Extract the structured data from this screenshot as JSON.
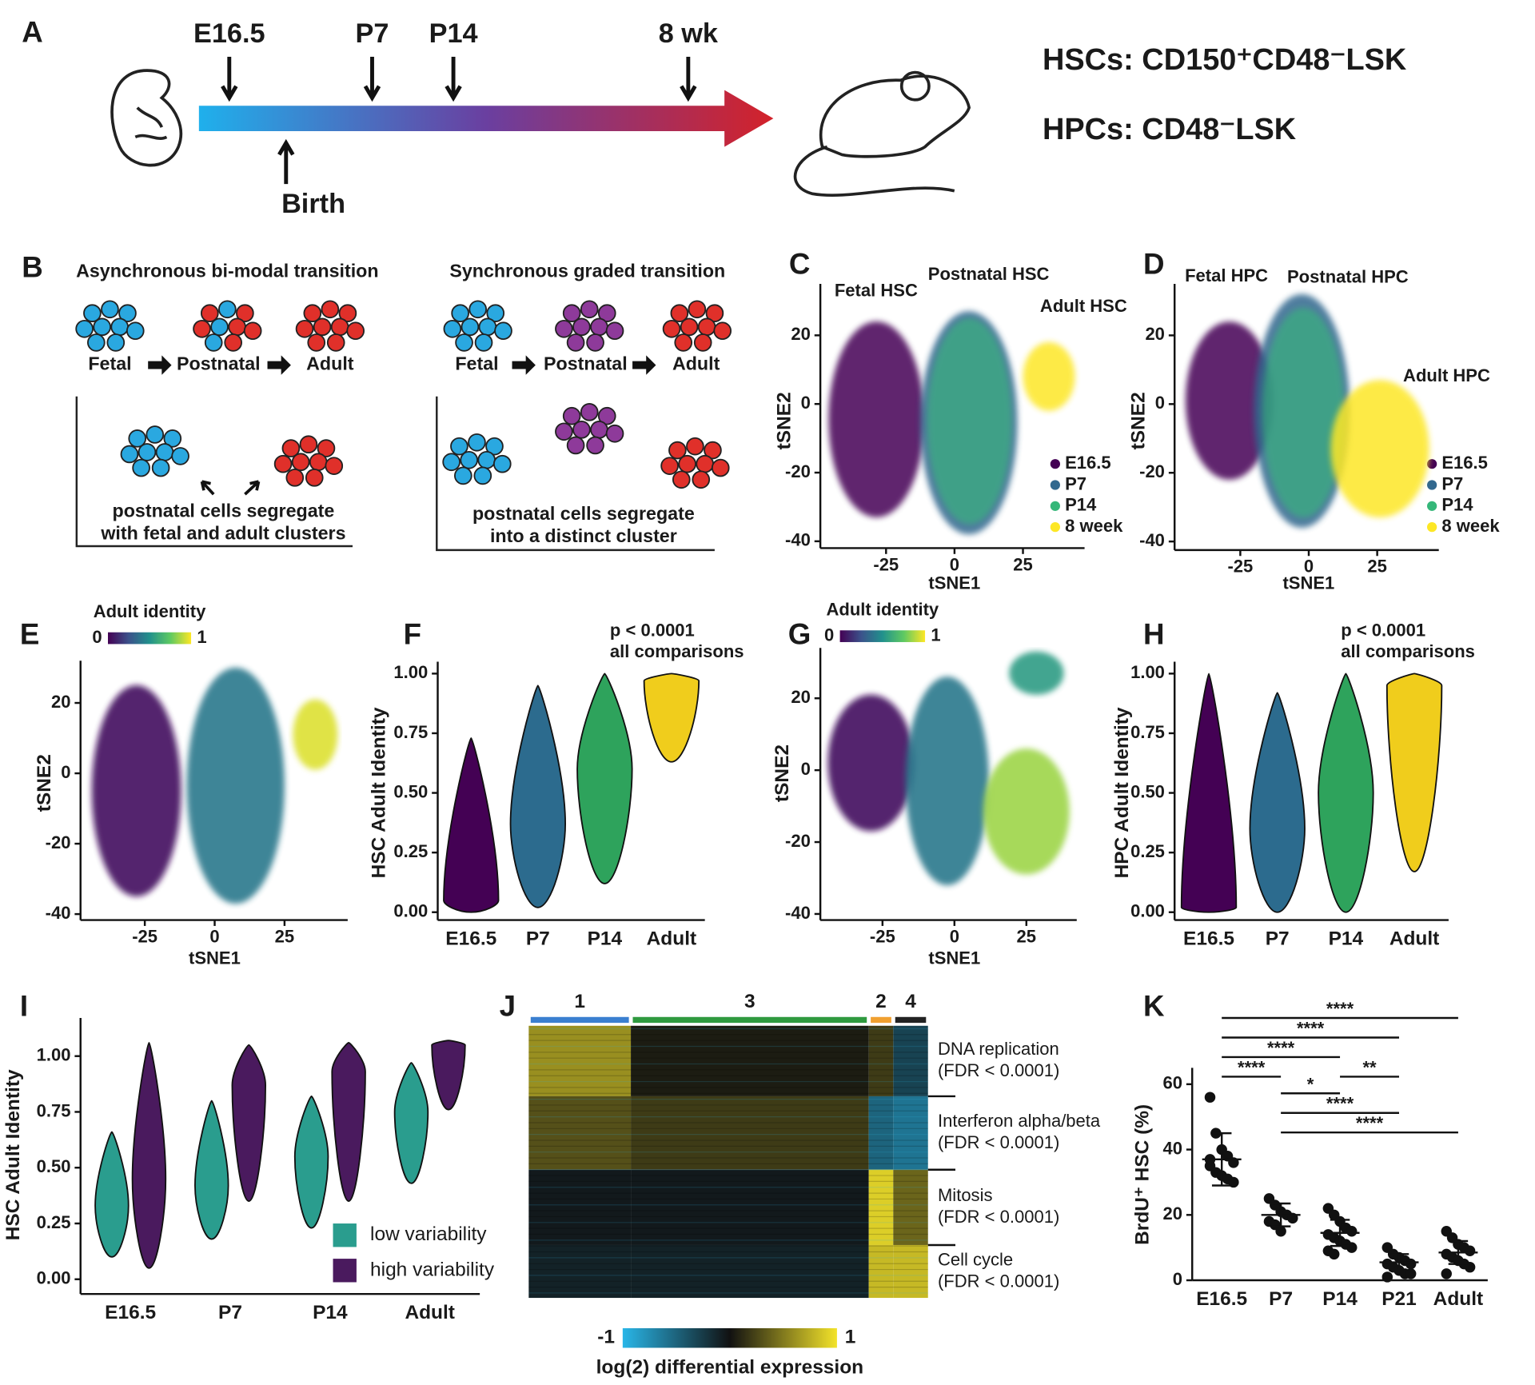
{
  "panel_labels": [
    "A",
    "B",
    "C",
    "D",
    "E",
    "F",
    "G",
    "H",
    "I",
    "J",
    "K"
  ],
  "panel_a": {
    "timepoints": [
      "E16.5",
      "P7",
      "P14",
      "8 wk"
    ],
    "birth": "Birth",
    "hsc": "HSCs: CD150⁺CD48⁻LSK",
    "hpc": "HPCs: CD48⁻LSK"
  },
  "panel_b": {
    "models": [
      {
        "title": "Asynchronous bi-modal transition",
        "stages": [
          "Fetal",
          "Postnatal",
          "Adult"
        ],
        "caption": [
          "postnatal cells segregate",
          "with fetal and adult clusters"
        ]
      },
      {
        "title": "Synchronous graded transition",
        "stages": [
          "Fetal",
          "Postnatal",
          "Adult"
        ],
        "caption": [
          "postnatal cells segregate",
          "into a distinct cluster"
        ]
      }
    ]
  },
  "chart_data": [
    {
      "type": "tsne",
      "annotations": [
        "Fetal HSC",
        "Postnatal HSC",
        "Adult HSC"
      ],
      "xlabel": "tSNE1",
      "ylabel": "tSNE2",
      "xlim": [
        -49,
        47.5
      ],
      "xticks": [
        -25,
        0,
        25
      ],
      "ylim": [
        -42,
        35
      ],
      "yticks": [
        -40,
        -20,
        0,
        20
      ],
      "series": [
        {
          "name": "E16.5",
          "color": "#440154",
          "x_range": [
            -46,
            -11
          ],
          "y_range": [
            -33,
            24
          ]
        },
        {
          "name": "P7",
          "color": "#31688e",
          "x_range": [
            -12.5,
            23
          ],
          "y_range": [
            -38,
            27
          ]
        },
        {
          "name": "P14",
          "color": "#35b779",
          "x_range": [
            -10,
            21
          ],
          "y_range": [
            -35,
            25
          ]
        },
        {
          "name": "8 week",
          "color": "#fde725",
          "x_range": [
            25,
            44
          ],
          "y_range": [
            -2,
            18
          ]
        }
      ]
    },
    {
      "type": "tsne",
      "annotations": [
        "Fetal HPC",
        "Postnatal HPC",
        "Adult HPC"
      ],
      "xlabel": "tSNE1",
      "ylabel": "tSNE2",
      "xlim": [
        -49,
        47.5
      ],
      "xticks": [
        -25,
        0,
        25
      ],
      "ylim": [
        -42.5,
        35
      ],
      "yticks": [
        -40,
        -20,
        0,
        20
      ],
      "series": [
        {
          "name": "E16.5",
          "color": "#440154",
          "x_range": [
            -45,
            -13
          ],
          "y_range": [
            -22,
            24
          ]
        },
        {
          "name": "P7",
          "color": "#31688e",
          "x_range": [
            -20,
            15
          ],
          "y_range": [
            -36,
            32
          ]
        },
        {
          "name": "P14",
          "color": "#35b779",
          "x_range": [
            -17,
            13
          ],
          "y_range": [
            -33,
            28
          ]
        },
        {
          "name": "8 week",
          "color": "#fde725",
          "x_range": [
            8,
            44
          ],
          "y_range": [
            -33,
            7
          ]
        }
      ]
    },
    {
      "type": "tsne",
      "colorbar_title": "Adult identity",
      "clim": [
        0,
        1
      ],
      "cticks": [
        0,
        1
      ],
      "xlabel": "tSNE1",
      "ylabel": "tSNE2",
      "xlim": [
        -48,
        47.6
      ],
      "xticks": [
        -25,
        0,
        25
      ],
      "ylim": [
        -41.7,
        32
      ],
      "yticks": [
        -40,
        -20,
        0,
        20
      ],
      "clusters": [
        {
          "x_range": [
            -44,
            -12
          ],
          "y_range": [
            -35,
            25
          ],
          "value": 0.05
        },
        {
          "x_range": [
            -10,
            25
          ],
          "y_range": [
            -37,
            30
          ],
          "value": 0.4
        },
        {
          "x_range": [
            28,
            44
          ],
          "y_range": [
            1,
            21
          ],
          "value": 0.95
        }
      ]
    },
    {
      "type": "tsne",
      "colorbar_title": "Adult identity",
      "clim": [
        0,
        1
      ],
      "cticks": [
        0,
        1
      ],
      "xlabel": "tSNE1",
      "ylabel": "tSNE2",
      "xlim": [
        -46.6,
        42.5
      ],
      "xticks": [
        -25,
        0,
        25
      ],
      "ylim": [
        -41.7,
        34
      ],
      "yticks": [
        -40,
        -20,
        0,
        20
      ],
      "clusters": [
        {
          "x_range": [
            -44,
            -14
          ],
          "y_range": [
            -17,
            21
          ],
          "value": 0.05
        },
        {
          "x_range": [
            -17,
            12
          ],
          "y_range": [
            -32,
            26
          ],
          "value": 0.4
        },
        {
          "x_range": [
            10,
            40
          ],
          "y_range": [
            -29,
            6
          ],
          "value": 0.85
        },
        {
          "x_range": [
            19,
            38
          ],
          "y_range": [
            21,
            33
          ],
          "value": 0.55
        }
      ]
    },
    {
      "type": "violin",
      "ylabel": "HSC Adult Identity",
      "annotation": [
        "p < 0.0001",
        "all comparisons"
      ],
      "categories": [
        "E16.5",
        "P7",
        "P14",
        "Adult"
      ],
      "colors": [
        "#440154",
        "#2c6b8e",
        "#2ea35c",
        "#f0cd1c"
      ],
      "ylim": [
        -0.033,
        1.05
      ],
      "yticks": [
        {
          "value": 0,
          "label": "0.00"
        },
        {
          "value": 0.25,
          "label": "0.25"
        },
        {
          "value": 0.5,
          "label": "0.50"
        },
        {
          "value": 0.75,
          "label": "0.75"
        },
        {
          "value": 1,
          "label": "1.00"
        }
      ],
      "min": [
        0,
        0.02,
        0.12,
        0.63
      ],
      "median": [
        0.05,
        0.37,
        0.6,
        0.97
      ],
      "max": [
        0.73,
        0.95,
        1.0,
        1.0
      ]
    },
    {
      "type": "violin",
      "ylabel": "HPC Adult Identity",
      "annotation": [
        "p < 0.0001",
        "all comparisons"
      ],
      "categories": [
        "E16.5",
        "P7",
        "P14",
        "Adult"
      ],
      "colors": [
        "#440154",
        "#2c6b8e",
        "#2ea35c",
        "#f0cd1c"
      ],
      "ylim": [
        -0.033,
        1.05
      ],
      "yticks": [
        {
          "value": 0,
          "label": "0.00"
        },
        {
          "value": 0.25,
          "label": "0.25"
        },
        {
          "value": 0.5,
          "label": "0.50"
        },
        {
          "value": 0.75,
          "label": "0.75"
        },
        {
          "value": 1,
          "label": "1.00"
        }
      ],
      "min": [
        0,
        0,
        0,
        0.17
      ],
      "median": [
        0.02,
        0.35,
        0.5,
        0.95
      ],
      "max": [
        1.0,
        0.92,
        1.0,
        1.0
      ]
    },
    {
      "type": "violin",
      "ylabel": "HSC Adult Identity",
      "categories": [
        "E16.5",
        "P7",
        "P14",
        "Adult"
      ],
      "ylim": [
        -0.066,
        1.171
      ],
      "yticks": [
        {
          "value": 0,
          "label": "0.00"
        },
        {
          "value": 0.25,
          "label": "0.25"
        },
        {
          "value": 0.5,
          "label": "0.50"
        },
        {
          "value": 0.75,
          "label": "0.75"
        },
        {
          "value": 1,
          "label": "1.00"
        }
      ],
      "series": [
        {
          "name": "low variability",
          "color": "#2a9d8e",
          "min": [
            0.1,
            0.18,
            0.23,
            0.43
          ],
          "median": [
            0.33,
            0.42,
            0.55,
            0.75
          ],
          "max": [
            0.66,
            0.8,
            0.82,
            0.97
          ]
        },
        {
          "name": "high variability",
          "color": "#4a1a5e",
          "min": [
            0.05,
            0.35,
            0.35,
            0.76
          ],
          "median": [
            0.45,
            0.87,
            0.93,
            1.05
          ],
          "max": [
            1.06,
            1.05,
            1.06,
            1.07
          ]
        }
      ]
    },
    {
      "type": "heatmap",
      "colorbar_title": "log(2) differential expression",
      "clim": [
        -1,
        1
      ],
      "cticks": [
        -1,
        1
      ],
      "column_groups": [
        {
          "label": "1",
          "color": "#3a7fd0",
          "size": 100
        },
        {
          "label": "3",
          "color": "#2f9a3f",
          "size": 233
        },
        {
          "label": "2",
          "color": "#f0a030",
          "size": 24
        },
        {
          "label": "4",
          "color": "#222222",
          "size": 34
        }
      ],
      "rows": [
        {
          "label": [
            "DNA replication",
            "(FDR < 0.0001)"
          ],
          "size": 72,
          "values": [
            0.6,
            0.05,
            0.2,
            -0.3
          ]
        },
        {
          "label": [
            "Interferon alpha/beta",
            "(FDR < 0.0001)"
          ],
          "size": 75,
          "values": [
            0.3,
            0.2,
            -0.5,
            -0.6
          ]
        },
        {
          "label": [
            "Mitosis",
            "(FDR < 0.0001)"
          ],
          "size": 77,
          "values": [
            -0.05,
            -0.05,
            0.9,
            0.4
          ]
        },
        {
          "label": [
            "Cell cycle",
            "(FDR < 0.0001)"
          ],
          "size": 54,
          "values": [
            -0.1,
            -0.1,
            0.8,
            0.8
          ]
        }
      ]
    },
    {
      "type": "dotplot",
      "ylabel": "BrdU⁺ HSC (%)",
      "categories": [
        "E16.5",
        "P7",
        "P14",
        "P21",
        "Adult"
      ],
      "ylim": [
        0,
        65
      ],
      "yticks": [
        0,
        20,
        40,
        60
      ],
      "mean": [
        37,
        20,
        14.5,
        5.5,
        8.5
      ],
      "sd": [
        8,
        3.5,
        4,
        2.5,
        3.5
      ],
      "points": [
        [
          56,
          45,
          40,
          38,
          36,
          35,
          33,
          32,
          31,
          30,
          37
        ],
        [
          25,
          23,
          21,
          20,
          19,
          18,
          17,
          15
        ],
        [
          22,
          20,
          18,
          16,
          15,
          14,
          13,
          12,
          11,
          10,
          9,
          8
        ],
        [
          10,
          8,
          7,
          6,
          5,
          5,
          4,
          3,
          2,
          2,
          1
        ],
        [
          15,
          13,
          11,
          10,
          9,
          8,
          7,
          6,
          5,
          4,
          2
        ]
      ],
      "comparisons": [
        {
          "from": "E16.5",
          "to": "Adult",
          "label": "****"
        },
        {
          "from": "E16.5",
          "to": "P21",
          "label": "****"
        },
        {
          "from": "E16.5",
          "to": "P14",
          "label": "****"
        },
        {
          "from": "E16.5",
          "to": "P7",
          "label": "****"
        },
        {
          "from": "P14",
          "to": "P21",
          "label": "**"
        },
        {
          "from": "P7",
          "to": "P14",
          "label": "*"
        },
        {
          "from": "P7",
          "to": "P21",
          "label": "****"
        },
        {
          "from": "P7",
          "to": "Adult",
          "label": "****"
        }
      ]
    }
  ]
}
